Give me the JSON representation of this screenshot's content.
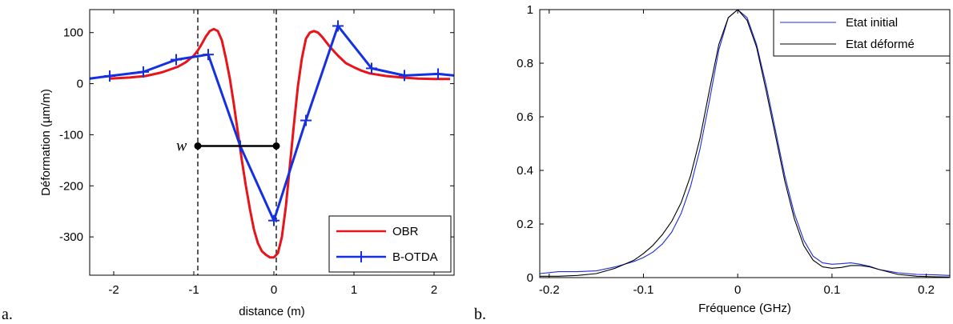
{
  "chart_data": [
    {
      "type": "line",
      "panel_label": "a.",
      "xlabel": "distance (m)",
      "ylabel": "Déformation (µm/m)",
      "xlim": [
        -2.3,
        2.25
      ],
      "ylim": [
        -375,
        145
      ],
      "xticks": [
        -2,
        -1,
        0,
        1,
        2
      ],
      "yticks": [
        100,
        0,
        -100,
        -200,
        -300
      ],
      "legend_position": "bottom-right",
      "series": [
        {
          "name": "OBR",
          "color": "#e8141a",
          "x": [
            -2.05,
            -1.8,
            -1.6,
            -1.4,
            -1.2,
            -1.1,
            -1.0,
            -0.95,
            -0.9,
            -0.85,
            -0.8,
            -0.75,
            -0.7,
            -0.65,
            -0.6,
            -0.55,
            -0.5,
            -0.45,
            -0.4,
            -0.35,
            -0.3,
            -0.25,
            -0.2,
            -0.15,
            -0.1,
            -0.05,
            0.0,
            0.05,
            0.1,
            0.15,
            0.2,
            0.25,
            0.3,
            0.35,
            0.4,
            0.45,
            0.5,
            0.55,
            0.6,
            0.65,
            0.7,
            0.8,
            0.9,
            1.0,
            1.1,
            1.2,
            1.4,
            1.6,
            1.8,
            2.0,
            2.2
          ],
          "y": [
            10,
            12,
            15,
            22,
            33,
            42,
            55,
            65,
            78,
            92,
            103,
            107,
            103,
            85,
            50,
            10,
            -40,
            -95,
            -150,
            -200,
            -245,
            -285,
            -312,
            -328,
            -335,
            -340,
            -340,
            -332,
            -300,
            -240,
            -160,
            -80,
            -5,
            50,
            88,
            100,
            103,
            100,
            92,
            82,
            72,
            55,
            40,
            32,
            25,
            20,
            15,
            12,
            10,
            9,
            9
          ]
        },
        {
          "name": "B-OTDA",
          "color": "#1530e0",
          "x": [
            -2.05,
            -1.63,
            -1.22,
            -0.82,
            -0.42,
            0.0,
            0.4,
            0.8,
            1.22,
            1.63,
            2.05
          ],
          "y": [
            15,
            23,
            47,
            57,
            -122,
            -268,
            -72,
            113,
            30,
            16,
            19
          ],
          "x_extended": [
            -2.3,
            2.25
          ],
          "y_extended": [
            10,
            16
          ]
        }
      ],
      "annotation": {
        "label": "w",
        "x_start": -0.95,
        "x_end": 0.03,
        "y": -122,
        "dashed_lines_x": [
          -0.95,
          0.03
        ]
      }
    },
    {
      "type": "line",
      "panel_label": "b.",
      "xlabel": "Fréquence (GHz)",
      "ylabel": "",
      "xlim": [
        -0.21,
        0.225
      ],
      "ylim": [
        0,
        1
      ],
      "xticks": [
        -0.2,
        -0.1,
        0,
        0.1,
        0.2
      ],
      "xtick_labels": [
        "-0.2",
        "-0.1",
        "0",
        "0.1",
        "0.2"
      ],
      "yticks": [
        0,
        0.2,
        0.4,
        0.6,
        0.8,
        1
      ],
      "ytick_labels": [
        "0",
        "0.2",
        "0.4",
        "0.6",
        "0.8",
        "1"
      ],
      "legend_position": "top-right",
      "series": [
        {
          "name": "Etat initial",
          "color": "#1e2bd8",
          "x": [
            -0.21,
            -0.19,
            -0.17,
            -0.15,
            -0.13,
            -0.11,
            -0.1,
            -0.09,
            -0.08,
            -0.07,
            -0.06,
            -0.05,
            -0.04,
            -0.03,
            -0.02,
            -0.01,
            0.0,
            0.01,
            0.02,
            0.03,
            0.04,
            0.05,
            0.06,
            0.07,
            0.08,
            0.09,
            0.1,
            0.11,
            0.12,
            0.13,
            0.14,
            0.15,
            0.17,
            0.19,
            0.21,
            0.225
          ],
          "y": [
            0.015,
            0.022,
            0.022,
            0.025,
            0.04,
            0.06,
            0.075,
            0.095,
            0.125,
            0.17,
            0.24,
            0.34,
            0.48,
            0.66,
            0.85,
            0.97,
            1.0,
            0.97,
            0.87,
            0.72,
            0.55,
            0.38,
            0.24,
            0.14,
            0.08,
            0.055,
            0.05,
            0.052,
            0.055,
            0.05,
            0.042,
            0.03,
            0.018,
            0.012,
            0.01,
            0.008
          ]
        },
        {
          "name": "Etat déformé",
          "color": "#000000",
          "x": [
            -0.21,
            -0.19,
            -0.17,
            -0.15,
            -0.13,
            -0.11,
            -0.1,
            -0.09,
            -0.08,
            -0.07,
            -0.06,
            -0.05,
            -0.04,
            -0.03,
            -0.02,
            -0.01,
            0.0,
            0.01,
            0.02,
            0.03,
            0.04,
            0.05,
            0.06,
            0.07,
            0.08,
            0.09,
            0.1,
            0.11,
            0.12,
            0.13,
            0.14,
            0.15,
            0.17,
            0.19,
            0.21,
            0.225
          ],
          "y": [
            0.005,
            0.005,
            0.008,
            0.015,
            0.035,
            0.065,
            0.09,
            0.12,
            0.16,
            0.21,
            0.28,
            0.38,
            0.52,
            0.7,
            0.87,
            0.97,
            1.0,
            0.96,
            0.86,
            0.7,
            0.53,
            0.36,
            0.22,
            0.12,
            0.065,
            0.04,
            0.035,
            0.038,
            0.045,
            0.045,
            0.04,
            0.03,
            0.012,
            0.005,
            0.003,
            0.002
          ]
        }
      ]
    }
  ]
}
